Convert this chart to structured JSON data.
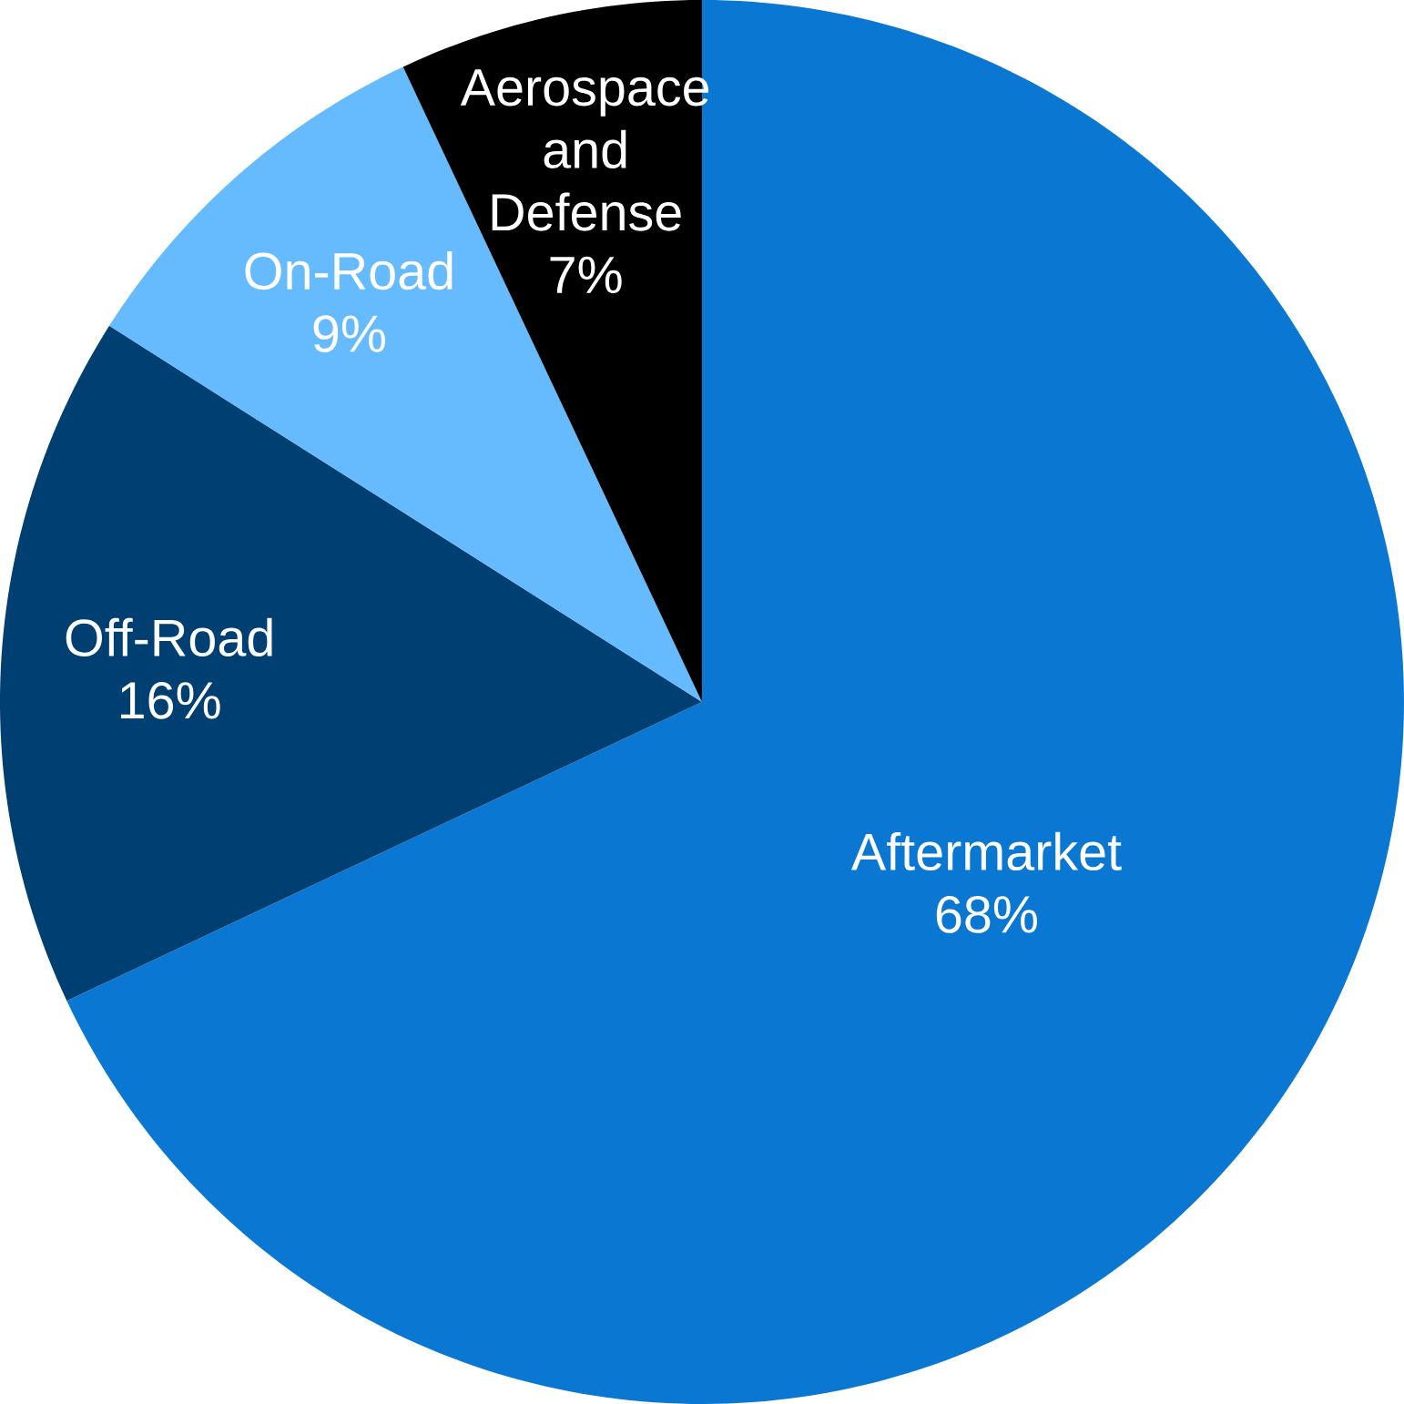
{
  "chart_data": {
    "type": "pie",
    "categories": [
      "Aftermarket",
      "Off-Road",
      "On-Road",
      "Aerospace and Defense"
    ],
    "values": [
      68,
      16,
      9,
      7
    ],
    "value_labels": [
      "68%",
      "16%",
      "9%",
      "7%"
    ],
    "colors": [
      "#0a78d2",
      "#003f72",
      "#66bbff",
      "#000000"
    ]
  }
}
